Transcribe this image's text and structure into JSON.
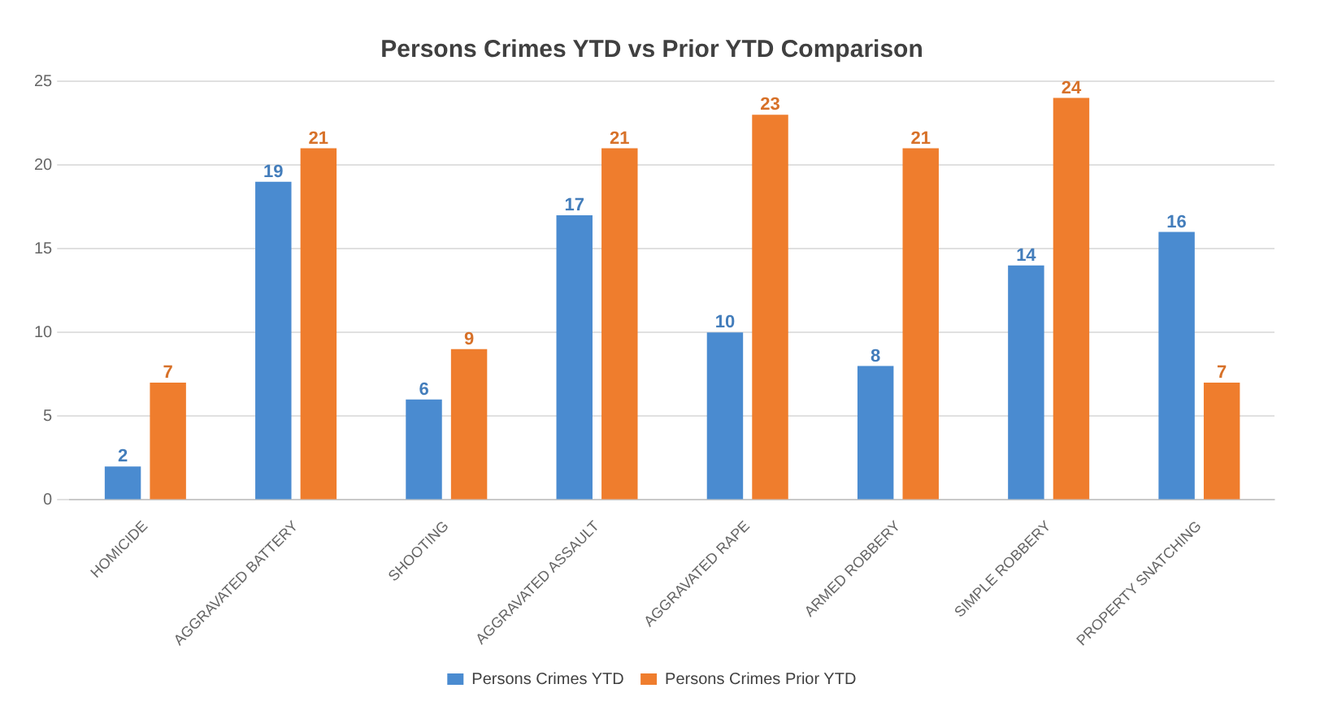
{
  "chart_data": {
    "type": "bar",
    "title": "Persons Crimes YTD vs Prior YTD Comparison",
    "categories": [
      "HOMICIDE",
      "AGGRAVATED BATTERY",
      "SHOOTING",
      "AGGRAVATED ASSAULT",
      "AGGRAVATED RAPE",
      "ARMED ROBBERY",
      "SIMPLE ROBBERY",
      "PROPERTY SNATCHING"
    ],
    "series": [
      {
        "name": "Persons Crimes YTD",
        "color": "#4a8bd0",
        "values": [
          2,
          19,
          6,
          17,
          10,
          8,
          14,
          16
        ]
      },
      {
        "name": "Persons Crimes Prior YTD",
        "color": "#ef7d2d",
        "values": [
          7,
          21,
          9,
          21,
          23,
          21,
          24,
          7
        ]
      }
    ],
    "ylim": [
      0,
      25
    ],
    "yticks": [
      0,
      5,
      10,
      15,
      20,
      25
    ],
    "grid": "y",
    "legend": "bottom",
    "data_labels": true
  }
}
